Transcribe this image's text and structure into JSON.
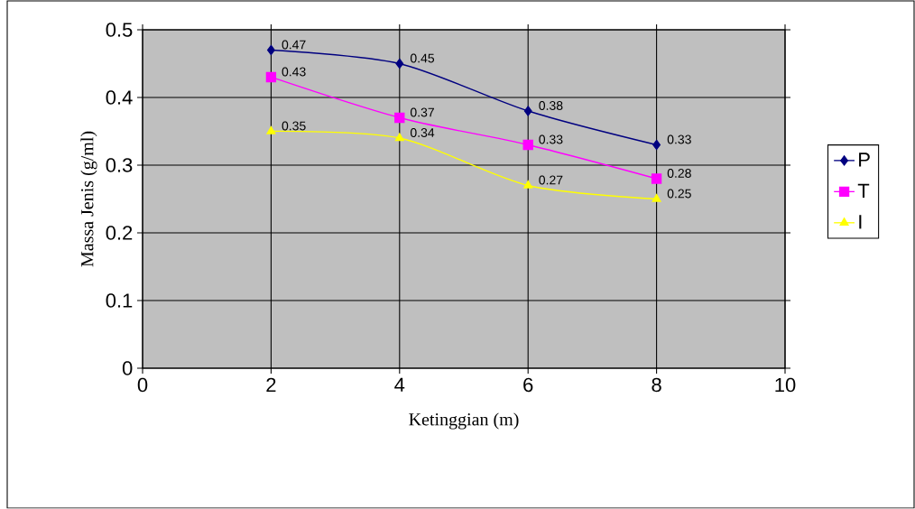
{
  "chart_data": {
    "type": "line",
    "xlabel": "Ketinggian (m)",
    "ylabel": "Massa Jenis (g/ml)",
    "x": [
      2,
      4,
      6,
      8
    ],
    "series": [
      {
        "name": "P",
        "color": "#000080",
        "marker": "diamond",
        "values": [
          0.47,
          0.45,
          0.38,
          0.33
        ]
      },
      {
        "name": "T",
        "color": "#ff00ff",
        "marker": "square",
        "values": [
          0.43,
          0.37,
          0.33,
          0.28
        ]
      },
      {
        "name": "I",
        "color": "#ffff00",
        "marker": "triangle",
        "values": [
          0.35,
          0.34,
          0.27,
          0.25
        ]
      }
    ],
    "xlim": [
      0,
      10
    ],
    "xticks": [
      0,
      2,
      4,
      6,
      8,
      10
    ],
    "ylim": [
      0,
      0.5
    ],
    "yticks": [
      0,
      0.1,
      0.2,
      0.3,
      0.4,
      0.5
    ],
    "grid": true,
    "legend": "right",
    "data_labels": true
  }
}
